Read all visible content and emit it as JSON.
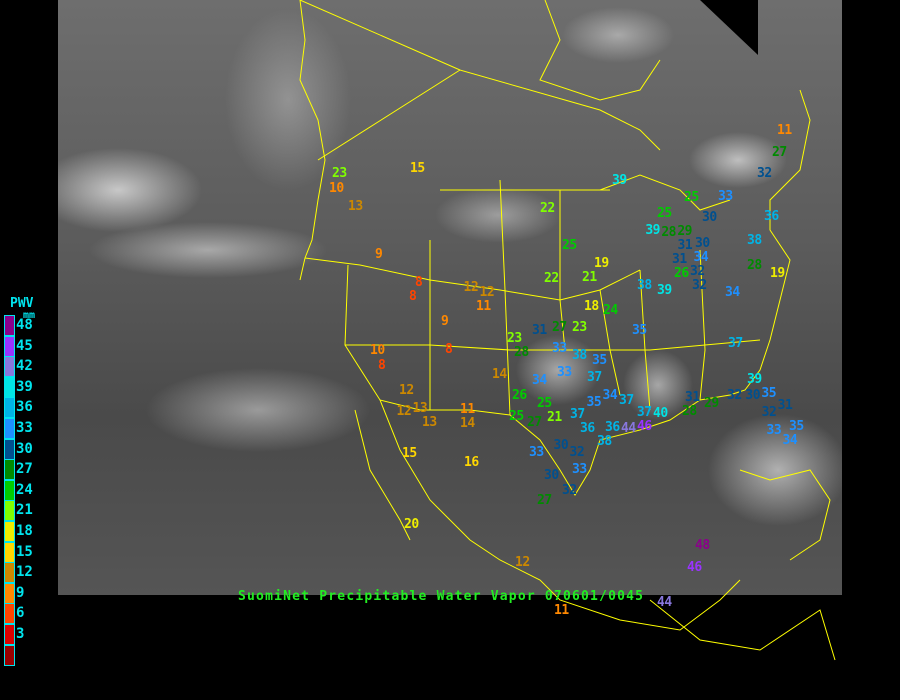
{
  "caption": "SuomiNet Precipitable Water Vapor 070601/0045",
  "legend": {
    "title": "PWV",
    "unit": "mm",
    "entries": [
      {
        "label": "48",
        "color": "#8b008b"
      },
      {
        "label": "45",
        "color": "#9933ff"
      },
      {
        "label": "42",
        "color": "#8877dd"
      },
      {
        "label": "39",
        "color": "#00e5e5"
      },
      {
        "label": "36",
        "color": "#00b4e6"
      },
      {
        "label": "33",
        "color": "#1e90ff"
      },
      {
        "label": "30",
        "color": "#00508f"
      },
      {
        "label": "27",
        "color": "#008b00"
      },
      {
        "label": "24",
        "color": "#00cc00"
      },
      {
        "label": "21",
        "color": "#80ff00"
      },
      {
        "label": "18",
        "color": "#eeee00"
      },
      {
        "label": "15",
        "color": "#ffd700"
      },
      {
        "label": "12",
        "color": "#cc8800"
      },
      {
        "label": "9",
        "color": "#ff8800"
      },
      {
        "label": "6",
        "color": "#ff4400"
      },
      {
        "label": "3",
        "color": "#dd0000"
      },
      {
        "label": "",
        "color": "#990000"
      }
    ]
  },
  "border_color": "#ffff00",
  "stations": [
    11,
    27,
    32,
    39,
    25,
    22,
    33,
    36,
    25,
    30,
    39,
    28,
    29,
    31,
    30,
    34,
    38,
    31,
    26,
    32,
    32,
    25,
    22,
    21,
    19,
    19,
    28,
    38,
    39,
    34,
    18,
    24,
    35,
    37,
    23,
    10,
    13,
    15,
    9,
    8,
    8,
    12,
    11,
    12,
    9,
    8,
    10,
    8,
    12,
    12,
    13,
    13,
    11,
    14,
    14,
    15,
    16,
    20,
    12,
    23,
    28,
    31,
    27,
    23,
    33,
    38,
    35,
    37,
    34,
    33,
    26,
    25,
    25,
    21,
    27,
    37,
    36,
    35,
    34,
    37,
    36,
    38,
    44,
    46,
    30,
    33,
    32,
    33,
    30,
    32,
    27,
    40,
    37,
    39,
    35,
    30,
    31,
    29,
    28,
    32,
    32,
    31,
    33,
    35,
    34,
    48,
    46,
    44,
    11
  ]
}
